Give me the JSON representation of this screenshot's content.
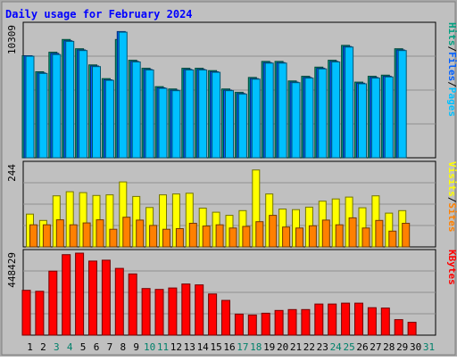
{
  "chart_data": {
    "title": "Daily usage for February 2024",
    "type": "bar",
    "colors": {
      "pages": "#00c0ff",
      "files": "#0060ff",
      "hits": "#00a080",
      "visits": "#ffff00",
      "sites": "#ff8000",
      "kbytes": "#ff0000",
      "title": "#0000ff",
      "panel": "#c0c0c0",
      "frame": "#a8a8a8",
      "weekend_label": "#00806a",
      "weekday_label": "#000000"
    },
    "x": {
      "categories": [
        "1",
        "2",
        "3",
        "4",
        "5",
        "6",
        "7",
        "8",
        "9",
        "10",
        "11",
        "12",
        "13",
        "14",
        "15",
        "16",
        "17",
        "18",
        "19",
        "20",
        "21",
        "22",
        "23",
        "24",
        "25",
        "26",
        "27",
        "28",
        "29",
        "30",
        "31"
      ],
      "weekend": [
        3,
        4,
        10,
        11,
        17,
        18,
        24,
        25,
        31
      ]
    },
    "panels": [
      {
        "name": "hits",
        "max_label": "10309",
        "ymax": 11500,
        "legend": [
          {
            "label": "Hits",
            "color": "#00a080"
          },
          {
            "label": "/",
            "color": "#000000"
          },
          {
            "label": "Files",
            "color": "#0060ff"
          },
          {
            "label": "/",
            "color": "#000000"
          },
          {
            "label": "Pages",
            "color": "#00c0ff"
          }
        ],
        "series": [
          {
            "name": "Hits",
            "color": "#00a080",
            "values": [
              8900,
              7500,
              9200,
              10309,
              9500,
              8100,
              6900,
              10309,
              8500,
              7800,
              6200,
              6000,
              7800,
              7800,
              7600,
              6000,
              5700,
              7000,
              8400,
              8400,
              6700,
              7100,
              7900,
              8500,
              9800,
              6600,
              7100,
              7200,
              9500,
              null,
              null
            ]
          },
          {
            "name": "Files",
            "color": "#0060ff",
            "values": [
              8900,
              7400,
              9100,
              10200,
              9400,
              8000,
              6800,
              11000,
              8400,
              7700,
              6100,
              5900,
              7700,
              7700,
              7500,
              5900,
              5600,
              6900,
              8300,
              8300,
              6600,
              7000,
              7800,
              8400,
              9700,
              6500,
              7000,
              7100,
              9400,
              null,
              null
            ]
          },
          {
            "name": "Pages",
            "color": "#00c0ff",
            "values": [
              8850,
              7350,
              9000,
              10150,
              9350,
              7950,
              6750,
              10950,
              8350,
              7650,
              6050,
              5850,
              7650,
              7650,
              7450,
              5850,
              5550,
              6850,
              8250,
              8250,
              6550,
              6950,
              7750,
              8350,
              9650,
              6450,
              6950,
              7050,
              9350,
              null,
              null
            ]
          }
        ]
      },
      {
        "name": "visits",
        "max_label": "244",
        "ymax": 260,
        "legend": [
          {
            "label": "Visits",
            "color": "#ffff00"
          },
          {
            "label": "/",
            "color": "#000000"
          },
          {
            "label": "Sites",
            "color": "#ff8000"
          }
        ],
        "series": [
          {
            "name": "Visits",
            "color": "#ffff00",
            "values": [
              104,
              84,
              162,
              175,
              172,
              163,
              165,
              206,
              160,
              125,
              165,
              168,
              170,
              123,
              110,
              100,
              115,
              244,
              168,
              120,
              118,
              126,
              145,
              152,
              158,
              124,
              162,
              107,
              115,
              null,
              null
            ]
          },
          {
            "name": "Sites",
            "color": "#ff8000",
            "values": [
              70,
              70,
              86,
              70,
              76,
              86,
              56,
              94,
              85,
              68,
              56,
              58,
              75,
              66,
              70,
              60,
              65,
              80,
              100,
              63,
              60,
              67,
              85,
              70,
              92,
              60,
              84,
              50,
              75,
              null,
              null
            ]
          }
        ]
      },
      {
        "name": "kbytes",
        "max_label": "448429",
        "ymax": 448429,
        "legend": [
          {
            "label": "KBytes",
            "color": "#ff0000"
          }
        ],
        "series": [
          {
            "name": "KBytes",
            "color": "#ff0000",
            "values": [
              245000,
              240000,
              350000,
              440000,
              448429,
              405000,
              410000,
              365000,
              335000,
              255000,
              250000,
              258000,
              280000,
              275000,
              225000,
              190000,
              115000,
              110000,
              120000,
              135000,
              140000,
              140000,
              170000,
              170000,
              175000,
              175000,
              150000,
              148000,
              85000,
              70000,
              null
            ]
          }
        ]
      }
    ]
  }
}
